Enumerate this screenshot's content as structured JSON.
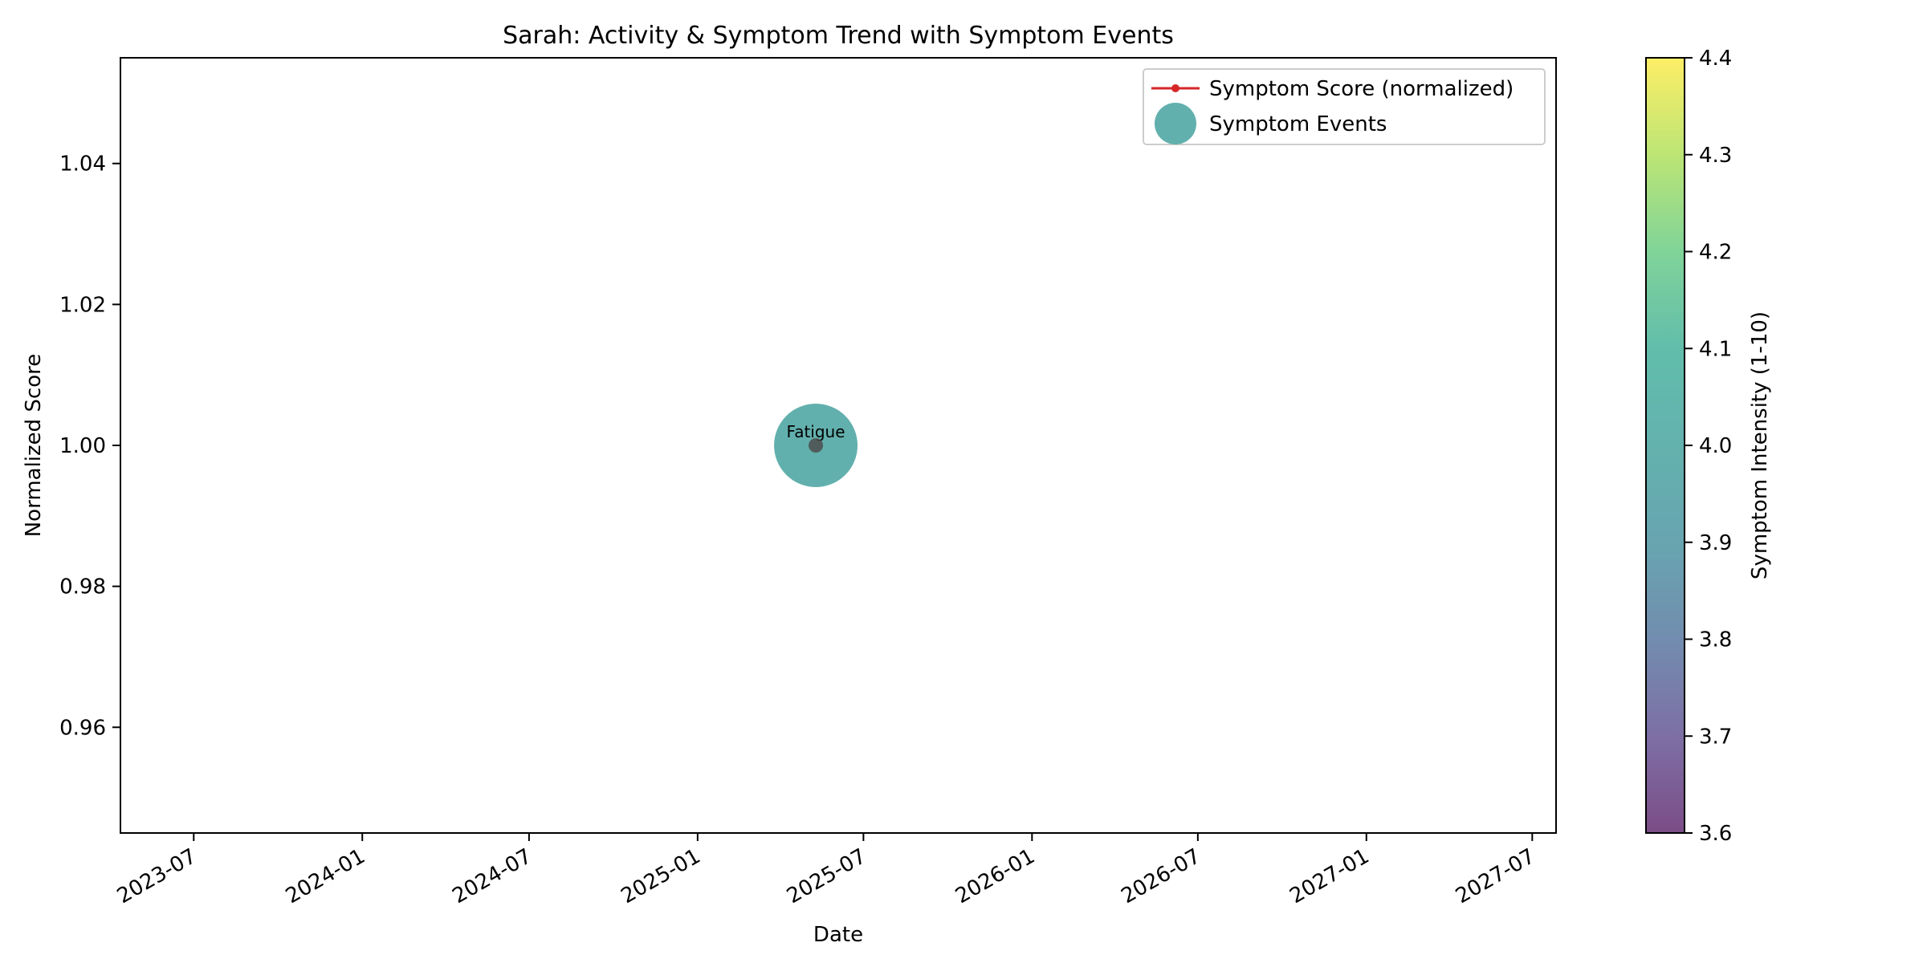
{
  "chart_data": {
    "type": "scatter",
    "title": "Sarah: Activity & Symptom Trend with Symptom Events",
    "xlabel": "Date",
    "ylabel": "Normalized Score",
    "x_axis": {
      "kind": "date",
      "range": [
        "2023-04-12",
        "2027-07-27"
      ],
      "ticks": [
        "2023-07",
        "2024-01",
        "2024-07",
        "2025-01",
        "2025-07",
        "2026-01",
        "2026-07",
        "2027-01",
        "2027-07"
      ]
    },
    "y_axis": {
      "range": [
        0.945,
        1.055
      ],
      "ticks": [
        0.96,
        0.98,
        1.0,
        1.02,
        1.04
      ],
      "tick_labels": [
        "0.96",
        "0.98",
        "1.00",
        "1.02",
        "1.04"
      ]
    },
    "grid": false,
    "legend": {
      "placement": "top-right",
      "entries": [
        {
          "label": "Symptom Score (normalized)",
          "color": "#d62728",
          "marker": "line-dot"
        },
        {
          "label": "Symptom Events",
          "color": "#5aaca9",
          "marker": "circle"
        }
      ]
    },
    "series": [
      {
        "name": "Symptom Score (normalized)",
        "kind": "line",
        "color": "#d62728",
        "points": [
          {
            "x": "2025-05-10",
            "y": 1.0
          }
        ]
      },
      {
        "name": "Symptom Events",
        "kind": "bubble",
        "points": [
          {
            "x": "2025-05-10",
            "y": 1.0,
            "intensity": 4.0,
            "label": "Fatigue"
          }
        ]
      }
    ],
    "colorbar": {
      "label": "Symptom Intensity (1-10)",
      "colormap": "viridis",
      "alpha": 0.7,
      "range": [
        3.6,
        4.4
      ],
      "ticks": [
        3.6,
        3.7,
        3.8,
        3.9,
        4.0,
        4.1,
        4.2,
        4.3,
        4.4
      ],
      "tick_labels": [
        "3.6",
        "3.7",
        "3.8",
        "3.9",
        "4.0",
        "4.1",
        "4.2",
        "4.3",
        "4.4"
      ]
    }
  }
}
